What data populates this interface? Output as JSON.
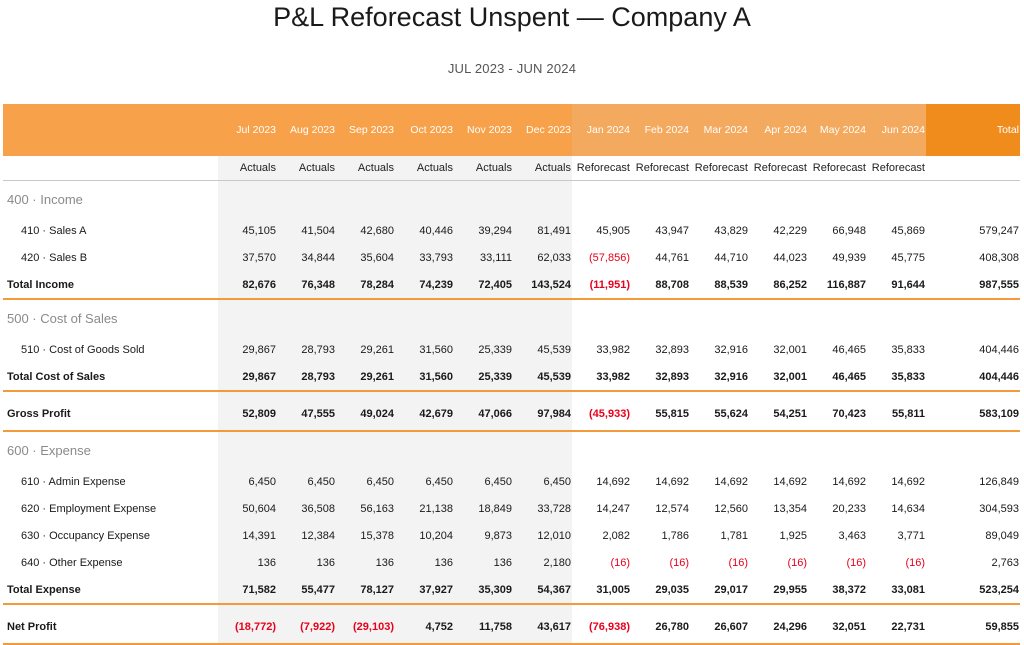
{
  "title": "P&L Reforecast Unspent — Company A",
  "subtitle": "JUL 2023 - JUN 2024",
  "months": [
    "Jul 2023",
    "Aug 2023",
    "Sep 2023",
    "Oct 2023",
    "Nov 2023",
    "Dec 2023",
    "Jan 2024",
    "Feb 2024",
    "Mar 2024",
    "Apr 2024",
    "May 2024",
    "Jun 2024"
  ],
  "total_header": "Total",
  "types": [
    "Actuals",
    "Actuals",
    "Actuals",
    "Actuals",
    "Actuals",
    "Actuals",
    "Reforecast",
    "Reforecast",
    "Reforecast",
    "Reforecast",
    "Reforecast",
    "Reforecast"
  ],
  "sections": [
    {
      "heading": "400 · Income",
      "rows": [
        {
          "label": "410 · Sales A",
          "values": [
            "45,105",
            "41,504",
            "42,680",
            "40,446",
            "39,294",
            "81,491",
            "45,905",
            "43,947",
            "43,829",
            "42,229",
            "66,948",
            "45,869"
          ],
          "total": "579,247"
        },
        {
          "label": "420 · Sales B",
          "values": [
            "37,570",
            "34,844",
            "35,604",
            "33,793",
            "33,111",
            "62,033",
            "(57,856)",
            "44,761",
            "44,710",
            "44,023",
            "49,939",
            "45,775"
          ],
          "total": "408,308"
        }
      ],
      "total_row": {
        "label": "Total Income",
        "values": [
          "82,676",
          "76,348",
          "78,284",
          "74,239",
          "72,405",
          "143,524",
          "(11,951)",
          "88,708",
          "88,539",
          "86,252",
          "116,887",
          "91,644"
        ],
        "total": "987,555"
      }
    },
    {
      "heading": "500 · Cost of Sales",
      "rows": [
        {
          "label": "510 · Cost of Goods Sold",
          "values": [
            "29,867",
            "28,793",
            "29,261",
            "31,560",
            "25,339",
            "45,539",
            "33,982",
            "32,893",
            "32,916",
            "32,001",
            "46,465",
            "35,833"
          ],
          "total": "404,446"
        }
      ],
      "total_row": {
        "label": "Total Cost of Sales",
        "values": [
          "29,867",
          "28,793",
          "29,261",
          "31,560",
          "25,339",
          "45,539",
          "33,982",
          "32,893",
          "32,916",
          "32,001",
          "46,465",
          "35,833"
        ],
        "total": "404,446"
      }
    },
    {
      "heading": "600 · Expense",
      "rows": [
        {
          "label": "610 · Admin Expense",
          "values": [
            "6,450",
            "6,450",
            "6,450",
            "6,450",
            "6,450",
            "6,450",
            "14,692",
            "14,692",
            "14,692",
            "14,692",
            "14,692",
            "14,692"
          ],
          "total": "126,849"
        },
        {
          "label": "620 · Employment Expense",
          "values": [
            "50,604",
            "36,508",
            "56,163",
            "21,138",
            "18,849",
            "33,728",
            "14,247",
            "12,574",
            "12,560",
            "13,354",
            "20,233",
            "14,634"
          ],
          "total": "304,593"
        },
        {
          "label": "630 · Occupancy Expense",
          "values": [
            "14,391",
            "12,384",
            "15,378",
            "10,204",
            "9,873",
            "12,010",
            "2,082",
            "1,786",
            "1,781",
            "1,925",
            "3,463",
            "3,771"
          ],
          "total": "89,049"
        },
        {
          "label": "640 · Other Expense",
          "values": [
            "136",
            "136",
            "136",
            "136",
            "136",
            "2,180",
            "(16)",
            "(16)",
            "(16)",
            "(16)",
            "(16)",
            "(16)"
          ],
          "total": "2,763"
        }
      ],
      "total_row": {
        "label": "Total Expense",
        "values": [
          "71,582",
          "55,477",
          "78,127",
          "37,927",
          "35,309",
          "54,367",
          "31,005",
          "29,035",
          "29,017",
          "29,955",
          "38,372",
          "33,081"
        ],
        "total": "523,254"
      }
    }
  ],
  "gross_profit": {
    "label": "Gross Profit",
    "values": [
      "52,809",
      "47,555",
      "49,024",
      "42,679",
      "47,066",
      "97,984",
      "(45,933)",
      "55,815",
      "55,624",
      "54,251",
      "70,423",
      "55,811"
    ],
    "total": "583,109"
  },
  "net_profit": {
    "label": "Net Profit",
    "values": [
      "(18,772)",
      "(7,922)",
      "(29,103)",
      "4,752",
      "11,758",
      "43,617",
      "(76,938)",
      "26,780",
      "26,607",
      "24,296",
      "32,051",
      "22,731"
    ],
    "total": "59,855"
  },
  "colors": {
    "header_orange": "#f7a24a",
    "total_orange": "#f08c1c",
    "rule_orange": "#f39a3a",
    "negative_red": "#e8001c",
    "actuals_shade": "#f3f3f3"
  }
}
